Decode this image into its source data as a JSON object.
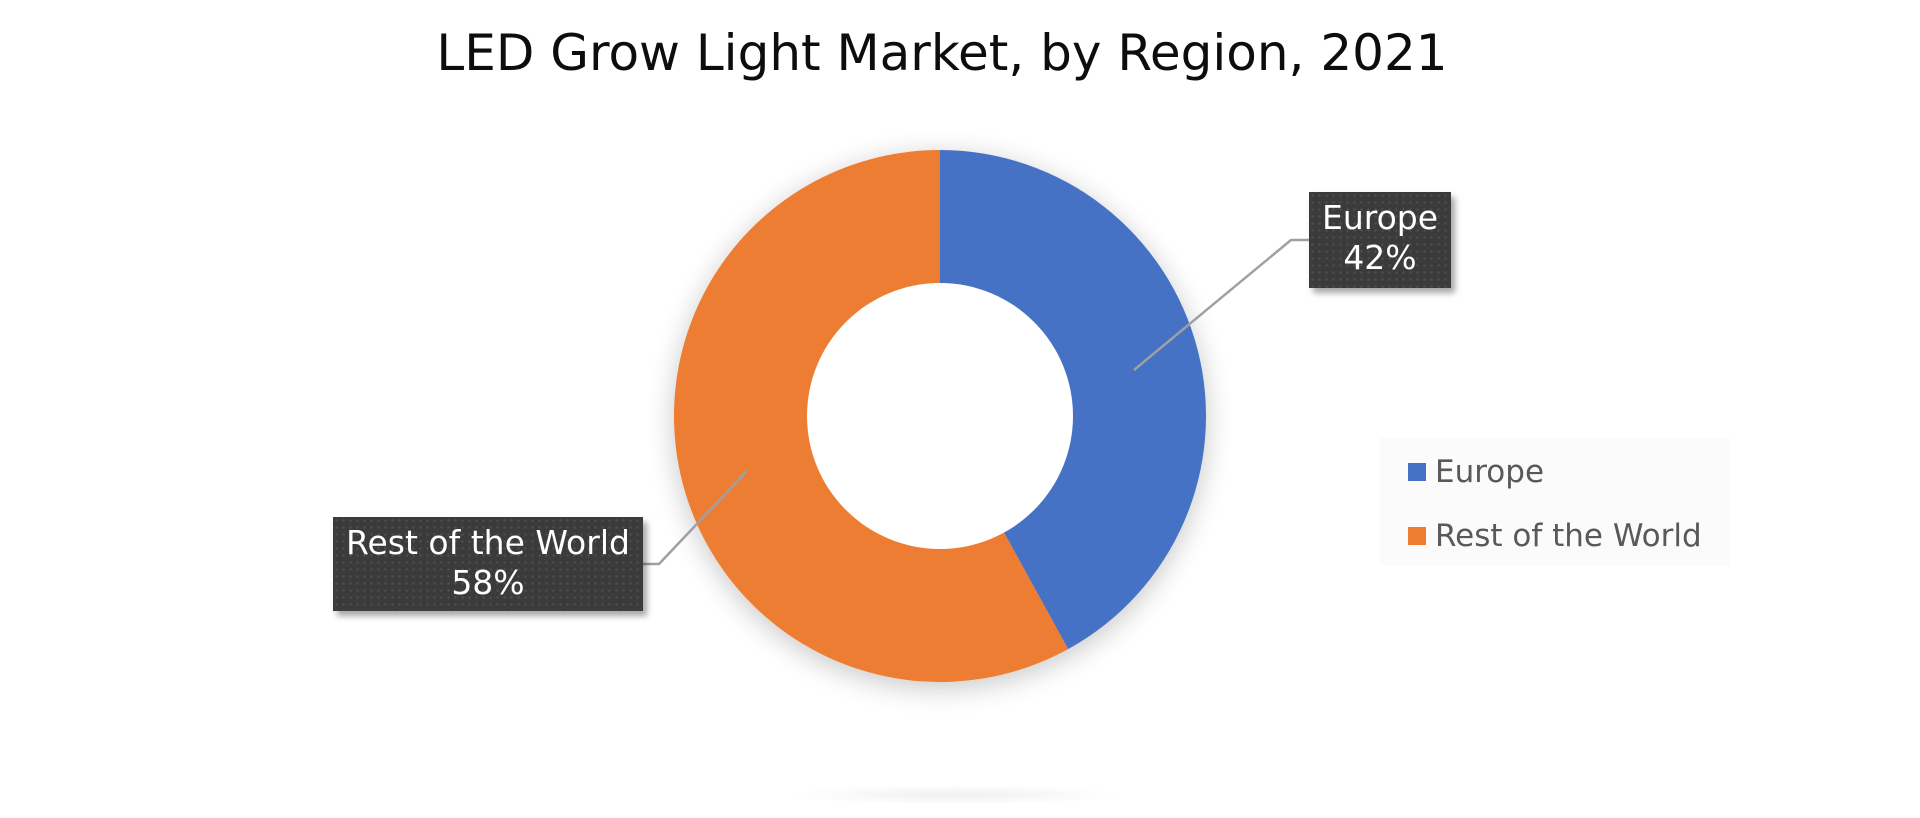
{
  "chart_data": {
    "type": "pie",
    "variant": "donut",
    "title": "LED Grow Light Market, by Region, 2021",
    "categories": [
      "Europe",
      "Rest of the World"
    ],
    "values": [
      42,
      58
    ],
    "unit": "%",
    "data_labels": [
      {
        "category": "Europe",
        "text": "Europe",
        "value": "42%"
      },
      {
        "category": "Rest of the World",
        "text": "Rest of the World",
        "value": "58%"
      }
    ],
    "colors": [
      "#4472C4",
      "#ED7D31"
    ],
    "legend_position": "right",
    "start_angle": 0,
    "direction": "clockwise"
  },
  "title": "LED Grow Light Market, by Region, 2021",
  "labels": {
    "europe": {
      "name": "Europe",
      "value": "42%"
    },
    "row": {
      "name": "Rest of the World",
      "value": "58%"
    }
  },
  "legend": {
    "items": [
      {
        "label": "Europe",
        "color": "#4472C4"
      },
      {
        "label": "Rest of the World",
        "color": "#ED7D31"
      }
    ]
  }
}
